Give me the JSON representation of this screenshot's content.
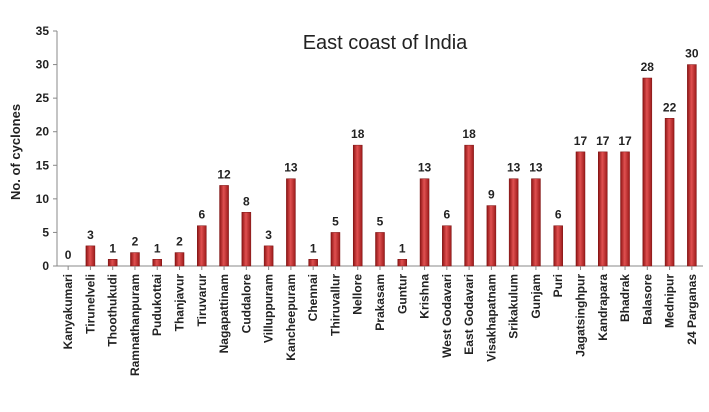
{
  "chart_data": {
    "type": "bar",
    "title": "East coast of India",
    "xlabel": "",
    "ylabel": "No. of cyclones",
    "ylim": [
      0,
      35
    ],
    "yticks": [
      0,
      5,
      10,
      15,
      20,
      25,
      30,
      35
    ],
    "grid": false,
    "legend": "none",
    "bar_color": "#b22222",
    "categories": [
      "Kanyakumari",
      "Tirunelveli",
      "Thoothukudi",
      "Ramnathanpuram",
      "Pudukottai",
      "Thanjavur",
      "Tiruvarur",
      "Nagapattinam",
      "Cuddalore",
      "Villuppuram",
      "Kancheepuram",
      "Chennai",
      "Thiruvallur",
      "Nellore",
      "Prakasam",
      "Guntur",
      "Krishna",
      "West Godavari",
      "East Godavari",
      "Visakhapatnam",
      "Srikakulum",
      "Gunjam",
      "Puri",
      "Jagatsinghpur",
      "Kandrapara",
      "Bhadrak",
      "Balasore",
      "Mednipur",
      "24 Parganas"
    ],
    "values": [
      0,
      3,
      1,
      2,
      1,
      2,
      6,
      12,
      8,
      3,
      13,
      1,
      5,
      18,
      5,
      1,
      13,
      6,
      18,
      9,
      13,
      13,
      6,
      17,
      17,
      17,
      28,
      22,
      30
    ]
  }
}
